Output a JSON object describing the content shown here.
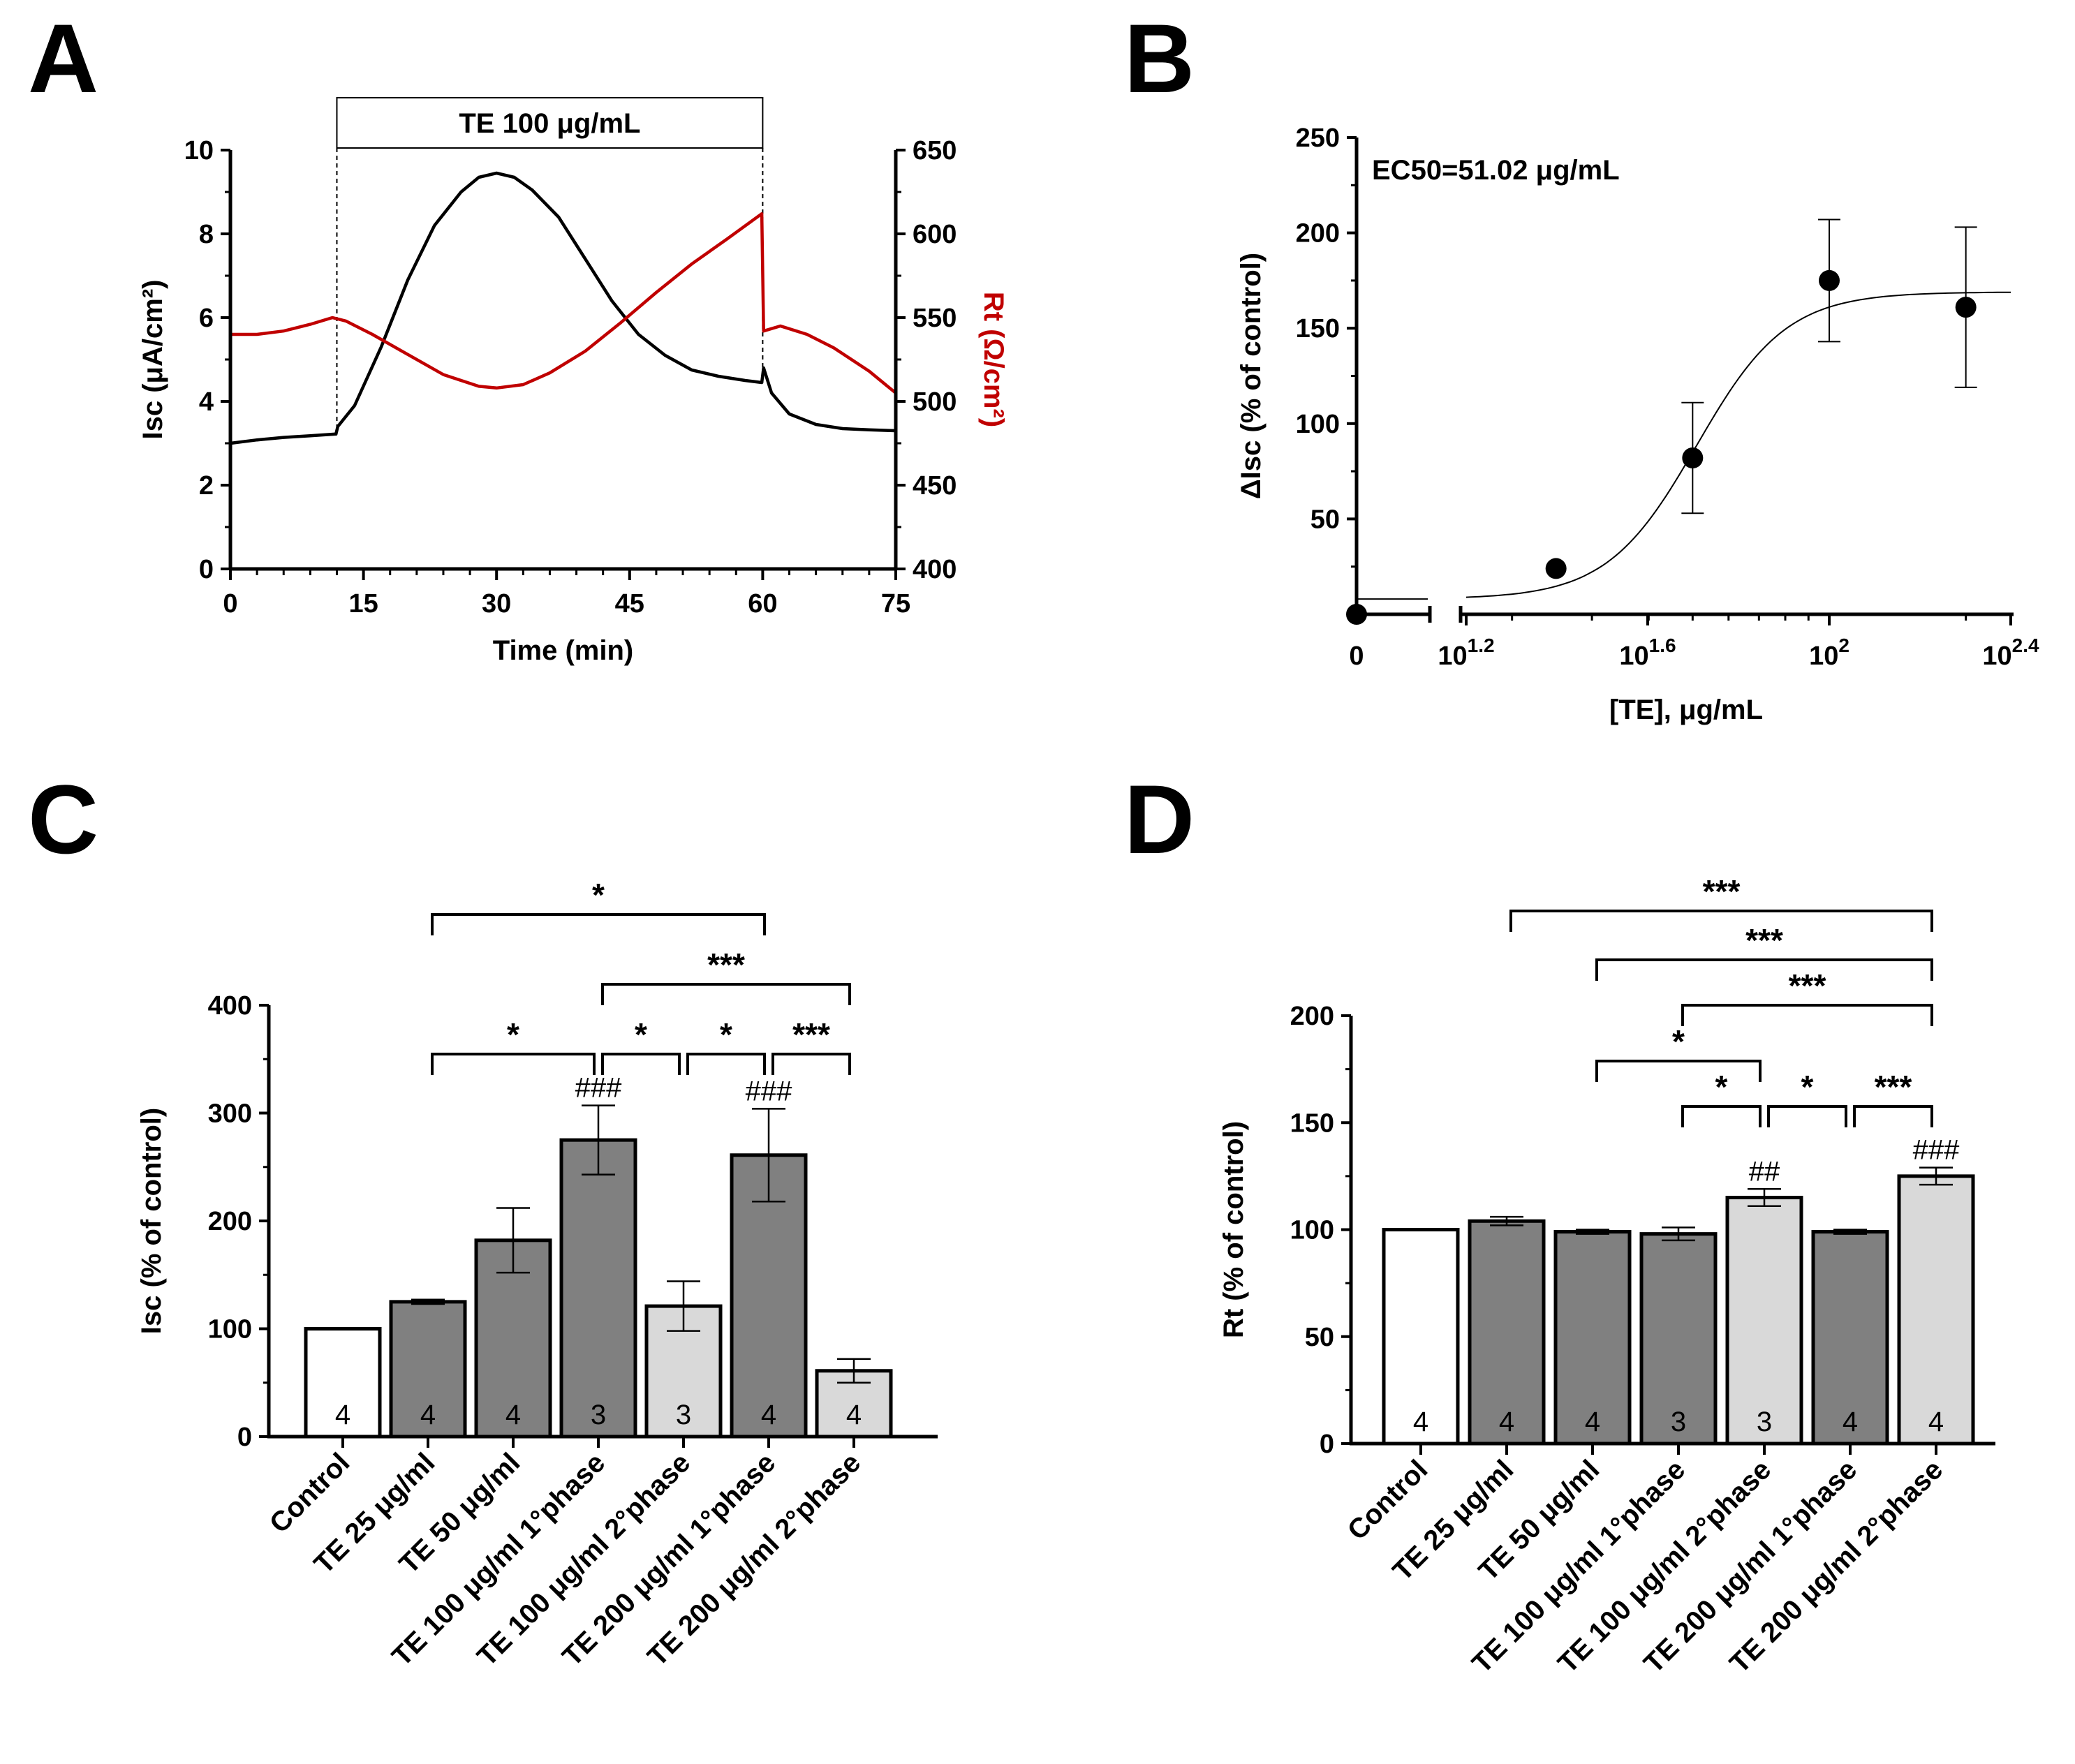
{
  "panels": {
    "a": {
      "letter": "A"
    },
    "b": {
      "letter": "B"
    },
    "c": {
      "letter": "C"
    },
    "d": {
      "letter": "D"
    }
  },
  "chart_data": [
    {
      "id": "A",
      "type": "line",
      "treatment_label": "TE 100 μg/mL",
      "treatment_window": [
        12,
        60
      ],
      "xlabel": "Time (min)",
      "ylabel": "Isc (μA/cm²)",
      "y2label": "Rt (Ω/cm²)",
      "xlim": [
        0,
        75
      ],
      "ylim": [
        0,
        10
      ],
      "y2lim": [
        400,
        650
      ],
      "xticks": [
        "0",
        "15",
        "30",
        "45",
        "60",
        "75"
      ],
      "yticks": [
        "0",
        "2",
        "4",
        "6",
        "8",
        "10"
      ],
      "y2ticks": [
        "400",
        "450",
        "500",
        "550",
        "600",
        "650"
      ],
      "colors": {
        "isc": "#000000",
        "rt": "#c00000"
      },
      "series": [
        {
          "name": "Isc",
          "axis": "left",
          "x": [
            0,
            3,
            6,
            9,
            11.9,
            12.1,
            14,
            17,
            20,
            23,
            26,
            28,
            30,
            32,
            34,
            37,
            40,
            43,
            46,
            49,
            52,
            55,
            58,
            59.9,
            60.1,
            61,
            63,
            66,
            69,
            72,
            75
          ],
          "y": [
            3.0,
            3.08,
            3.14,
            3.18,
            3.22,
            3.4,
            3.9,
            5.3,
            6.9,
            8.2,
            9.0,
            9.35,
            9.45,
            9.35,
            9.05,
            8.4,
            7.4,
            6.4,
            5.6,
            5.1,
            4.75,
            4.6,
            4.5,
            4.45,
            4.8,
            4.2,
            3.7,
            3.45,
            3.35,
            3.32,
            3.3
          ]
        },
        {
          "name": "Rt",
          "axis": "right",
          "x": [
            0,
            3,
            6,
            9,
            11.5,
            13,
            16,
            20,
            24,
            28,
            30,
            33,
            36,
            40,
            44,
            48,
            52,
            56,
            59.9,
            60.1,
            62,
            65,
            68,
            72,
            75
          ],
          "y": [
            540,
            540,
            542,
            546,
            550,
            548,
            540,
            528,
            516,
            509,
            508,
            510,
            517,
            530,
            547,
            565,
            582,
            597,
            612,
            542,
            545,
            540,
            532,
            518,
            505
          ]
        }
      ]
    },
    {
      "id": "B",
      "type": "scatter",
      "annotation": "EC50=51.02 μg/mL",
      "xlabel": "[TE], μg/mL",
      "ylabel": "ΔIsc (% of control)",
      "ylim": [
        0,
        250
      ],
      "yticks": [
        "50",
        "100",
        "150",
        "200",
        "250"
      ],
      "xlim_log10": [
        1.2,
        2.4
      ],
      "xticks": [
        {
          "label": "0",
          "special": "zero"
        },
        {
          "base": "10",
          "exp": "1.2",
          "log": 1.2
        },
        {
          "base": "10",
          "exp": "1.6",
          "log": 1.6
        },
        {
          "base": "10",
          "exp": "2",
          "log": 2.0
        },
        {
          "base": "10",
          "exp": "2.4",
          "log": 2.4
        }
      ],
      "points": [
        {
          "x": 0,
          "y": 0,
          "err": 0
        },
        {
          "x": 25,
          "y": 24,
          "err": 0
        },
        {
          "x": 50,
          "y": 82,
          "err": 29
        },
        {
          "x": 100,
          "y": 175,
          "err": 32
        },
        {
          "x": 200,
          "y": 161,
          "err": 42
        }
      ],
      "fit": {
        "bottom": 8,
        "top": 169,
        "ec50": 51.02,
        "hill": 4.4
      }
    },
    {
      "id": "C",
      "type": "bar",
      "ylabel": "Isc (% of control)",
      "ylim": [
        0,
        400
      ],
      "yticks": [
        "0",
        "100",
        "200",
        "300",
        "400"
      ],
      "categories": [
        "Control",
        "TE 25 μg/ml",
        "TE 50 μg/ml",
        "TE 100 μg/ml 1°phase",
        "TE 100 μg/ml 2°phase",
        "TE 200 μg/ml 1°phase",
        "TE 200 μg/ml 2°phase"
      ],
      "values": [
        100,
        125,
        182,
        275,
        121,
        261,
        61
      ],
      "errors": [
        0,
        2,
        30,
        32,
        23,
        43,
        11
      ],
      "n": [
        "4",
        "4",
        "4",
        "3",
        "3",
        "4",
        "4"
      ],
      "fills": [
        "#ffffff",
        "#808080",
        "#808080",
        "#808080",
        "#d9d9d9",
        "#808080",
        "#d9d9d9"
      ],
      "hashes": [
        {
          "bar": 3,
          "text": "###"
        },
        {
          "bar": 5,
          "text": "###"
        }
      ],
      "brackets": [
        {
          "from": 1,
          "to": 5,
          "text": "*",
          "level": 0
        },
        {
          "from": 3,
          "to": 6,
          "text": "***",
          "level": 1
        },
        {
          "from": 1,
          "to": 3,
          "text": "*",
          "level": 2
        },
        {
          "from": 3,
          "to": 4,
          "text": "*",
          "level": 2
        },
        {
          "from": 4,
          "to": 5,
          "text": "*",
          "level": 2
        },
        {
          "from": 5,
          "to": 6,
          "text": "***",
          "level": 2
        }
      ]
    },
    {
      "id": "D",
      "type": "bar",
      "ylabel": "Rt (% of control)",
      "ylim": [
        0,
        200
      ],
      "yticks": [
        "0",
        "50",
        "100",
        "150",
        "200"
      ],
      "categories": [
        "Control",
        "TE 25 μg/ml",
        "TE 50 μg/ml",
        "TE 100 μg/ml 1°phase",
        "TE 100 μg/ml 2°phase",
        "TE 200 μg/ml 1°phase",
        "TE 200 μg/ml 2°phase"
      ],
      "values": [
        100,
        104,
        99,
        98,
        115,
        99,
        125
      ],
      "errors": [
        0,
        2,
        1,
        3,
        4,
        1,
        4
      ],
      "n": [
        "4",
        "4",
        "4",
        "3",
        "3",
        "4",
        "4"
      ],
      "fills": [
        "#ffffff",
        "#808080",
        "#808080",
        "#808080",
        "#d9d9d9",
        "#808080",
        "#d9d9d9"
      ],
      "hashes": [
        {
          "bar": 4,
          "text": "##"
        },
        {
          "bar": 6,
          "text": "###"
        }
      ],
      "brackets": [
        {
          "from": 1,
          "to": 6,
          "text": "***",
          "level": 0
        },
        {
          "from": 2,
          "to": 6,
          "text": "***",
          "level": 1
        },
        {
          "from": 3,
          "to": 6,
          "text": "***",
          "level": 2
        },
        {
          "from": 2,
          "to": 4,
          "text": "*",
          "level": 3
        },
        {
          "from": 3,
          "to": 4,
          "text": "*",
          "level": 4
        },
        {
          "from": 4,
          "to": 5,
          "text": "*",
          "level": 4
        },
        {
          "from": 5,
          "to": 6,
          "text": "***",
          "level": 4
        }
      ]
    }
  ]
}
